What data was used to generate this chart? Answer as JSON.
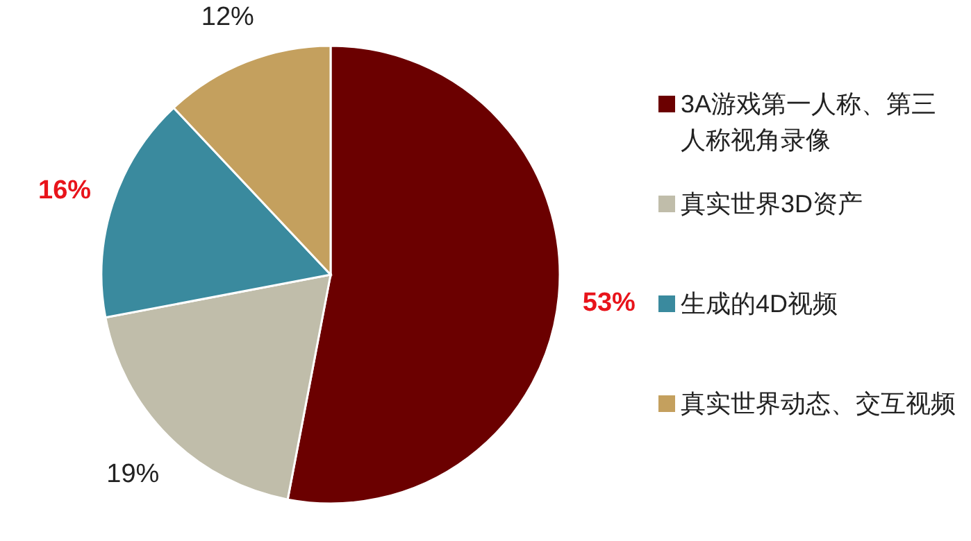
{
  "chart_data": {
    "type": "pie",
    "categories": [
      "3A游戏第一人称、第三人称视角录像",
      "真实世界3D资产",
      "生成的4D视频",
      "真实世界动态、交互视频"
    ],
    "values": [
      53,
      19,
      16,
      12
    ],
    "colors": [
      "#6b0000",
      "#c0bdaa",
      "#3a8a9e",
      "#c4a05e"
    ],
    "value_labels": [
      "**53%**",
      "19%",
      "**16%**",
      "12%"
    ],
    "legend": "right"
  }
}
